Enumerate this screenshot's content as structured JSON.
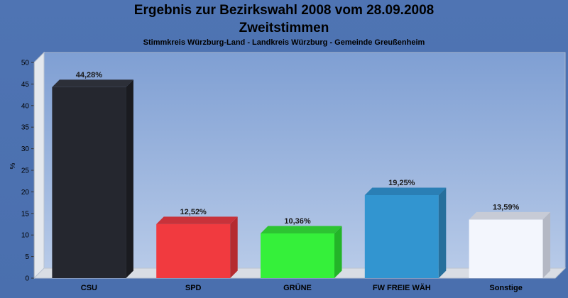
{
  "chart_data": {
    "type": "bar",
    "title": "Ergebnis zur Bezirkswahl 2008 vom 28.09.2008",
    "title2": "Zweitstimmen",
    "subtitle": "Stimmkreis Würzburg-Land - Landkreis Würzburg - Gemeinde Greußenheim",
    "ylabel": "%",
    "xlabel": "",
    "ylim": [
      0,
      50
    ],
    "yticks": [
      0,
      5,
      10,
      15,
      20,
      25,
      30,
      35,
      40,
      45,
      50
    ],
    "grid": false,
    "categories": [
      "CSU",
      "SPD",
      "GRÜNE",
      "FW FREIE WÄH",
      "Sonstige"
    ],
    "values": [
      44.28,
      12.52,
      10.36,
      19.25,
      13.59
    ],
    "data_labels": [
      "44,28%",
      "12,52%",
      "10,36%",
      "19,25%",
      "13,59%"
    ],
    "colors": [
      "#25272f",
      "#f13a3f",
      "#35f03a",
      "#3295d0",
      "#f3f6fd"
    ],
    "side_colors": [
      "#1a1b20",
      "#b52b30",
      "#23b428",
      "#266f9c",
      "#b4b8c4"
    ],
    "top_colors": [
      "#2c2f38",
      "#c8323a",
      "#2dc432",
      "#2a7fb5",
      "#c7cbd6"
    ]
  }
}
